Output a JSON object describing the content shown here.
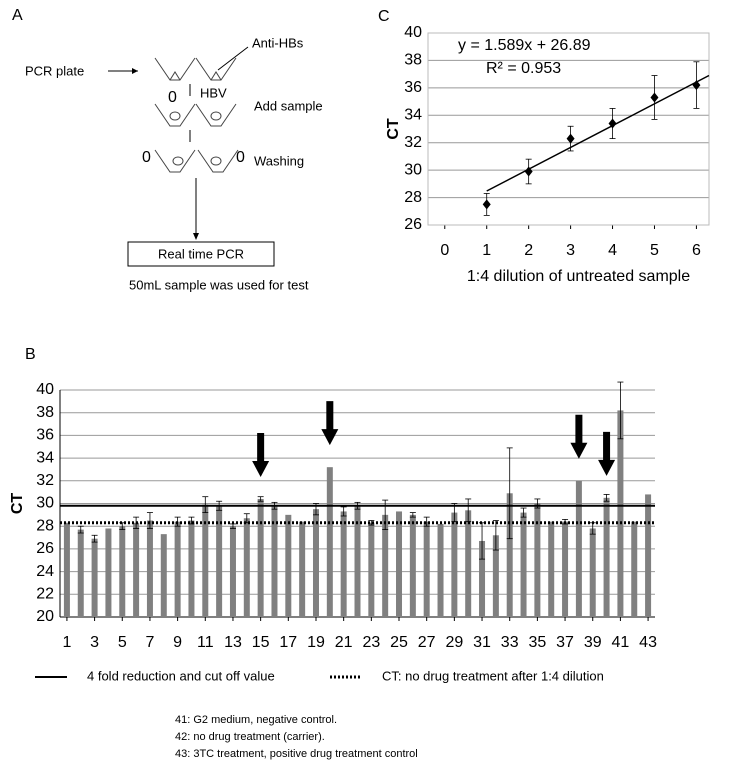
{
  "diagram": {
    "panel_label": "A",
    "plate_label": "PCR plate",
    "antibody_label": "Anti-HBs",
    "virus_label": "HBV",
    "step_add": "Add sample",
    "step_wash": "Washing",
    "marker_1": "0",
    "marker_2": "0",
    "marker_3": "0",
    "detection": "Real time PCR",
    "caption": "50mL sample was used for test"
  },
  "chart_data": [
    {
      "type": "scatter",
      "panel_label": "C",
      "x_label": "1:4 dilution of untreated sample",
      "y_label": "CT",
      "x": [
        1,
        2,
        3,
        4,
        5,
        6
      ],
      "values": [
        27.5,
        29.9,
        32.3,
        33.4,
        35.3,
        36.2
      ],
      "errors": [
        0.8,
        0.9,
        0.9,
        1.1,
        1.6,
        1.7
      ],
      "color": "#000000",
      "xlim": [
        -0.4,
        6.3
      ],
      "xticks": [
        0,
        1,
        2,
        3,
        4,
        5,
        6
      ],
      "ylim": [
        26,
        40
      ],
      "yticks": [
        26,
        28,
        30,
        32,
        34,
        36,
        38,
        40
      ],
      "grid": true,
      "trendline": {
        "slope": 1.589,
        "intercept": 26.89,
        "color": "#000000"
      },
      "equation": "y = 1.589x + 26.89",
      "r_squared": "R² = 0.953"
    },
    {
      "type": "bar",
      "panel_label": "B",
      "y_label": "CT",
      "x": [
        1,
        2,
        3,
        4,
        5,
        6,
        7,
        8,
        9,
        10,
        11,
        12,
        13,
        14,
        15,
        16,
        17,
        18,
        19,
        20,
        21,
        22,
        23,
        24,
        25,
        26,
        27,
        28,
        29,
        30,
        31,
        32,
        33,
        34,
        35,
        36,
        37,
        38,
        39,
        40,
        41,
        42,
        43
      ],
      "values": [
        28.3,
        27.7,
        26.9,
        27.8,
        28.0,
        28.3,
        28.5,
        27.3,
        28.4,
        28.5,
        29.9,
        29.8,
        28.0,
        28.7,
        30.4,
        29.8,
        29.0,
        28.4,
        29.5,
        33.2,
        29.3,
        29.8,
        28.3,
        29.0,
        29.3,
        29.0,
        28.4,
        28.2,
        29.2,
        29.4,
        26.7,
        27.2,
        30.9,
        29.2,
        30.0,
        28.4,
        28.4,
        32.0,
        27.8,
        30.5,
        38.2,
        28.4,
        30.8
      ],
      "errors": [
        null,
        0.3,
        0.3,
        null,
        0.3,
        0.5,
        0.7,
        null,
        0.4,
        0.3,
        0.7,
        0.4,
        0.2,
        0.4,
        0.2,
        0.3,
        null,
        null,
        0.5,
        null,
        0.4,
        0.3,
        0.2,
        1.3,
        null,
        0.2,
        0.4,
        null,
        0.8,
        1.0,
        1.6,
        1.3,
        4.0,
        0.4,
        0.4,
        null,
        0.2,
        null,
        0.5,
        0.3,
        2.5,
        null,
        null
      ],
      "color": "#808080",
      "xlim": [
        0.5,
        43.5
      ],
      "xticks": [
        1,
        3,
        5,
        7,
        9,
        11,
        13,
        15,
        17,
        19,
        21,
        23,
        25,
        27,
        29,
        31,
        33,
        35,
        37,
        39,
        41,
        43
      ],
      "ylim": [
        20,
        40
      ],
      "yticks": [
        20,
        22,
        24,
        26,
        28,
        30,
        32,
        34,
        36,
        38,
        40
      ],
      "grid": true,
      "arrows_x": [
        15,
        20,
        38,
        40
      ],
      "reference_lines": [
        {
          "name": "4 fold reduction and cut off value",
          "value": 29.8,
          "style": "solid"
        },
        {
          "name": "CT: no drug treatment after 1:4 dilution",
          "value": 28.3,
          "style": "dotted"
        }
      ]
    }
  ],
  "notes": [
    "41: G2 medium, negative control.",
    "42: no drug treatment (carrier).",
    "43: 3TC treatment, positive drug treatment control"
  ]
}
